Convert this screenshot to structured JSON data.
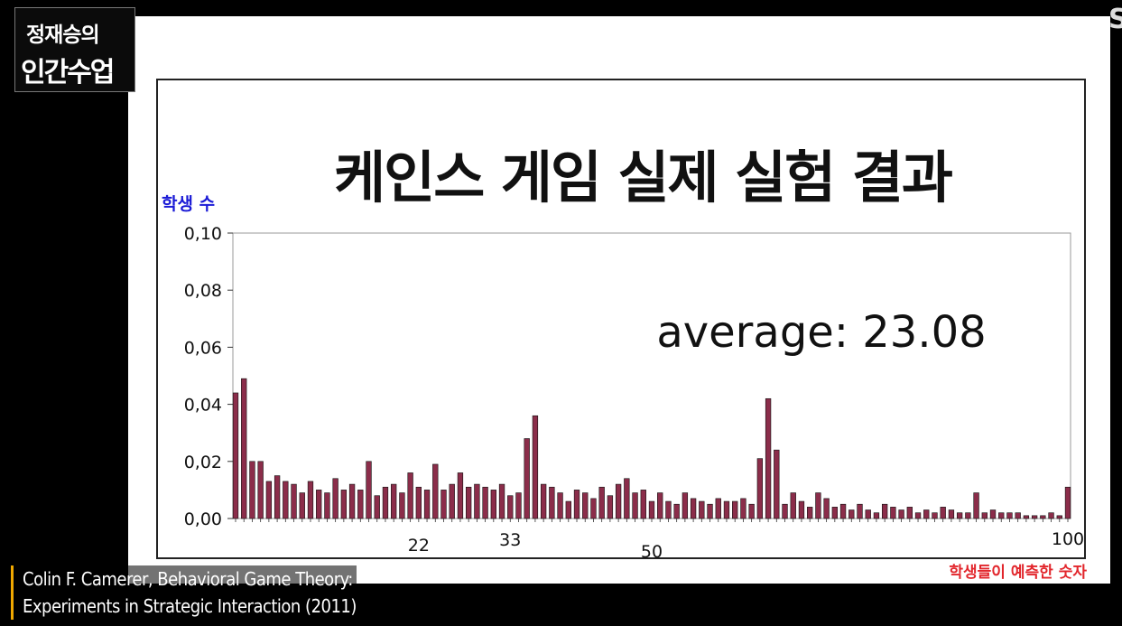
{
  "channel_logo": {
    "line1": "정재승의",
    "line2": "인간수업"
  },
  "corner_mark": "S",
  "citation": {
    "line1": "Colin F. Camerer, Behavioral Game Theory:",
    "line2": "Experiments in Strategic Interaction (2011)"
  },
  "colors": {
    "bar_fill": "#8b2d4a",
    "bar_edge": "#111111",
    "ylabel_color": "#1a1ad6",
    "xlabel_color": "#e2262c"
  },
  "chart_data": {
    "type": "bar",
    "title": "케인스 게임 실제 실험 결과",
    "annotation": "average: 23.08",
    "ylabel": "학생 수",
    "xlabel": "학생들이 예측한 숫자",
    "ylim": [
      0,
      0.1
    ],
    "xlim": [
      0,
      100
    ],
    "y_ticks": [
      "0,00",
      "0,02",
      "0,04",
      "0,06",
      "0,08",
      "0,10"
    ],
    "x_tick_labels": [
      {
        "x": 22,
        "label": "22"
      },
      {
        "x": 33,
        "label": "33"
      },
      {
        "x": 50,
        "label": "50"
      },
      {
        "x": 100,
        "label": "100"
      }
    ],
    "grid": false,
    "x": [
      0,
      1,
      2,
      3,
      4,
      5,
      6,
      7,
      8,
      9,
      10,
      11,
      12,
      13,
      14,
      15,
      16,
      17,
      18,
      19,
      20,
      21,
      22,
      23,
      24,
      25,
      26,
      27,
      28,
      29,
      30,
      31,
      32,
      33,
      34,
      35,
      36,
      37,
      38,
      39,
      40,
      41,
      42,
      43,
      44,
      45,
      46,
      47,
      48,
      49,
      50,
      51,
      52,
      53,
      54,
      55,
      56,
      57,
      58,
      59,
      60,
      61,
      62,
      63,
      64,
      65,
      66,
      67,
      68,
      69,
      70,
      71,
      72,
      73,
      74,
      75,
      76,
      77,
      78,
      79,
      80,
      81,
      82,
      83,
      84,
      85,
      86,
      87,
      88,
      89,
      90,
      91,
      92,
      93,
      94,
      95,
      96,
      97,
      98,
      99,
      100
    ],
    "values": [
      0.044,
      0.049,
      0.02,
      0.02,
      0.013,
      0.015,
      0.013,
      0.012,
      0.009,
      0.013,
      0.01,
      0.009,
      0.014,
      0.01,
      0.012,
      0.01,
      0.02,
      0.008,
      0.011,
      0.012,
      0.009,
      0.016,
      0.011,
      0.01,
      0.019,
      0.01,
      0.012,
      0.016,
      0.011,
      0.012,
      0.011,
      0.01,
      0.012,
      0.008,
      0.009,
      0.028,
      0.036,
      0.012,
      0.011,
      0.009,
      0.006,
      0.01,
      0.009,
      0.007,
      0.011,
      0.008,
      0.012,
      0.014,
      0.009,
      0.01,
      0.006,
      0.009,
      0.006,
      0.005,
      0.009,
      0.007,
      0.006,
      0.005,
      0.007,
      0.006,
      0.006,
      0.007,
      0.005,
      0.021,
      0.042,
      0.024,
      0.005,
      0.009,
      0.006,
      0.004,
      0.009,
      0.007,
      0.004,
      0.005,
      0.003,
      0.005,
      0.003,
      0.002,
      0.005,
      0.004,
      0.003,
      0.004,
      0.002,
      0.003,
      0.002,
      0.004,
      0.003,
      0.002,
      0.002,
      0.009,
      0.002,
      0.003,
      0.002,
      0.002,
      0.002,
      0.001,
      0.001,
      0.001,
      0.002,
      0.001,
      0.011
    ]
  }
}
